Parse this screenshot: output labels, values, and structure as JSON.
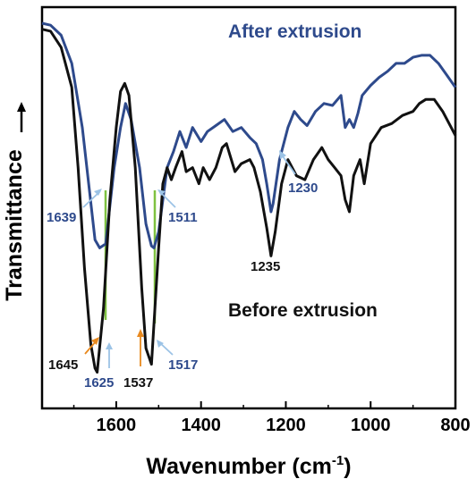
{
  "chart_data": {
    "type": "line",
    "xlabel": "Wavenumber (cm",
    "xlabel_sup": "-1",
    "xlabel_close": ")",
    "ylabel": "Transmittance",
    "xlim": [
      1775,
      800
    ],
    "x_ticks": [
      1600,
      1400,
      1200,
      1000,
      800
    ],
    "x_tick_labels": [
      "1600",
      "1400",
      "1200",
      "1000",
      "800"
    ],
    "grid": false,
    "colors": {
      "after": "#2e4a8c",
      "before": "#111111",
      "after_label": "#2e4a8c",
      "before_label": "#111111",
      "green": "#7fc241",
      "orange": "#e8891e",
      "lightblue": "#9cc3e6"
    },
    "series": [
      {
        "name": "After extrusion",
        "color": "#2e4a8c",
        "x": [
          1775,
          1755,
          1730,
          1705,
          1680,
          1665,
          1650,
          1639,
          1625,
          1605,
          1590,
          1578,
          1565,
          1545,
          1530,
          1517,
          1511,
          1500,
          1480,
          1465,
          1450,
          1435,
          1420,
          1400,
          1385,
          1365,
          1345,
          1325,
          1305,
          1285,
          1270,
          1255,
          1245,
          1235,
          1230,
          1215,
          1195,
          1180,
          1165,
          1150,
          1130,
          1110,
          1090,
          1070,
          1060,
          1050,
          1040,
          1030,
          1020,
          1000,
          980,
          960,
          940,
          920,
          900,
          880,
          860,
          840,
          820,
          800
        ],
        "y": [
          0.96,
          0.955,
          0.93,
          0.86,
          0.7,
          0.56,
          0.42,
          0.4,
          0.41,
          0.6,
          0.7,
          0.76,
          0.72,
          0.6,
          0.46,
          0.405,
          0.4,
          0.44,
          0.6,
          0.64,
          0.69,
          0.65,
          0.7,
          0.665,
          0.69,
          0.705,
          0.72,
          0.69,
          0.7,
          0.675,
          0.66,
          0.62,
          0.56,
          0.49,
          0.51,
          0.62,
          0.7,
          0.74,
          0.72,
          0.705,
          0.74,
          0.76,
          0.755,
          0.78,
          0.7,
          0.72,
          0.7,
          0.735,
          0.78,
          0.805,
          0.825,
          0.84,
          0.86,
          0.86,
          0.875,
          0.88,
          0.88,
          0.86,
          0.83,
          0.8
        ]
      },
      {
        "name": "Before extrusion",
        "color": "#111111",
        "x": [
          1775,
          1755,
          1730,
          1705,
          1690,
          1675,
          1660,
          1650,
          1645,
          1630,
          1615,
          1600,
          1590,
          1580,
          1570,
          1555,
          1540,
          1530,
          1517,
          1500,
          1490,
          1480,
          1470,
          1460,
          1445,
          1435,
          1420,
          1405,
          1395,
          1380,
          1365,
          1350,
          1340,
          1320,
          1305,
          1285,
          1275,
          1260,
          1245,
          1235,
          1225,
          1210,
          1195,
          1175,
          1155,
          1135,
          1115,
          1100,
          1085,
          1070,
          1060,
          1050,
          1040,
          1025,
          1015,
          1000,
          975,
          950,
          925,
          900,
          885,
          870,
          850,
          830,
          810,
          800
        ],
        "y": [
          0.945,
          0.94,
          0.9,
          0.8,
          0.6,
          0.35,
          0.16,
          0.1,
          0.09,
          0.25,
          0.52,
          0.7,
          0.79,
          0.81,
          0.78,
          0.6,
          0.3,
          0.15,
          0.11,
          0.4,
          0.56,
          0.6,
          0.57,
          0.6,
          0.64,
          0.59,
          0.6,
          0.56,
          0.6,
          0.57,
          0.6,
          0.65,
          0.66,
          0.59,
          0.61,
          0.62,
          0.6,
          0.54,
          0.45,
          0.38,
          0.44,
          0.56,
          0.62,
          0.58,
          0.57,
          0.62,
          0.65,
          0.62,
          0.6,
          0.58,
          0.52,
          0.49,
          0.58,
          0.62,
          0.56,
          0.66,
          0.7,
          0.71,
          0.73,
          0.74,
          0.76,
          0.77,
          0.77,
          0.74,
          0.7,
          0.68
        ]
      }
    ],
    "curve_labels": [
      {
        "text": "After extrusion",
        "color": "#2e4a8c"
      },
      {
        "text": "Before extrusion",
        "color": "#111111"
      }
    ],
    "annotations": [
      {
        "text": "1639",
        "color": "#2e4a8c"
      },
      {
        "text": "1511",
        "color": "#2e4a8c"
      },
      {
        "text": "1230",
        "color": "#2e4a8c"
      },
      {
        "text": "1235",
        "color": "#111111"
      },
      {
        "text": "1645",
        "color": "#111111"
      },
      {
        "text": "1625",
        "color": "#2e4a8c"
      },
      {
        "text": "1537",
        "color": "#111111"
      },
      {
        "text": "1517",
        "color": "#2e4a8c"
      }
    ]
  }
}
